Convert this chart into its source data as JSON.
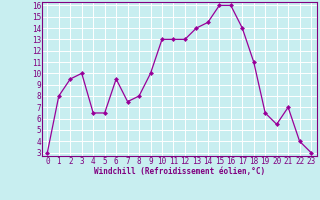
{
  "x": [
    0,
    1,
    2,
    3,
    4,
    5,
    6,
    7,
    8,
    9,
    10,
    11,
    12,
    13,
    14,
    15,
    16,
    17,
    18,
    19,
    20,
    21,
    22,
    23
  ],
  "y": [
    3,
    8,
    9.5,
    10,
    6.5,
    6.5,
    9.5,
    7.5,
    8,
    10,
    13,
    13,
    13,
    14,
    14.5,
    16,
    16,
    14,
    11,
    6.5,
    5.5,
    7,
    4,
    3
  ],
  "line_color": "#990099",
  "marker_color": "#990099",
  "bg_color": "#c8eef0",
  "grid_color": "#ffffff",
  "xlabel": "Windchill (Refroidissement éolien,°C)",
  "ylim_min": 3,
  "ylim_max": 16,
  "xlim_min": 0,
  "xlim_max": 23,
  "yticks": [
    3,
    4,
    5,
    6,
    7,
    8,
    9,
    10,
    11,
    12,
    13,
    14,
    15,
    16
  ],
  "xticks": [
    0,
    1,
    2,
    3,
    4,
    5,
    6,
    7,
    8,
    9,
    10,
    11,
    12,
    13,
    14,
    15,
    16,
    17,
    18,
    19,
    20,
    21,
    22,
    23
  ],
  "tick_color": "#800080",
  "label_fontsize": 5.5,
  "tick_fontsize": 5.5,
  "spine_color": "#800080",
  "linewidth": 0.9,
  "markersize": 2.0
}
